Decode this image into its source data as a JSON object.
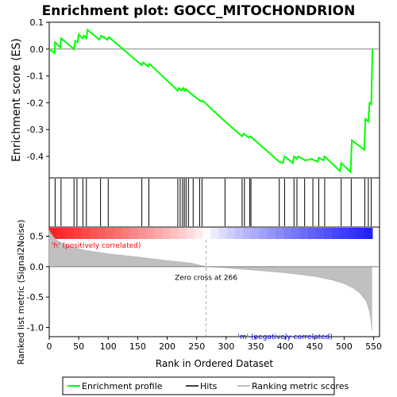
{
  "chart_data": {
    "type": "line",
    "title": "Enrichment plot: GOCC_MITOCHONDRION",
    "panels": {
      "enrichment": {
        "ylabel": "Enrichment score (ES)",
        "ylim": [
          -0.48,
          0.1
        ],
        "yticks": [
          0.1,
          0.0,
          -0.1,
          -0.2,
          -0.3,
          -0.4
        ],
        "series": [
          {
            "name": "Enrichment profile",
            "color": "#00ff00",
            "points": [
              [
                0,
                0.0
              ],
              [
                9,
                -0.015
              ],
              [
                10,
                0.025
              ],
              [
                19,
                0.005
              ],
              [
                20,
                0.04
              ],
              [
                42,
                0.0
              ],
              [
                44,
                0.03
              ],
              [
                48,
                0.025
              ],
              [
                50,
                0.055
              ],
              [
                57,
                0.04
              ],
              [
                59,
                0.05
              ],
              [
                63,
                0.04
              ],
              [
                65,
                0.072
              ],
              [
                85,
                0.035
              ],
              [
                88,
                0.05
              ],
              [
                99,
                0.035
              ],
              [
                101,
                0.045
              ],
              [
                157,
                -0.06
              ],
              [
                159,
                -0.05
              ],
              [
                168,
                -0.065
              ],
              [
                170,
                -0.055
              ],
              [
                218,
                -0.155
              ],
              [
                220,
                -0.145
              ],
              [
                224,
                -0.155
              ],
              [
                227,
                -0.145
              ],
              [
                229,
                -0.155
              ],
              [
                231,
                -0.148
              ],
              [
                236,
                -0.158
              ],
              [
                254,
                -0.19
              ],
              [
                258,
                -0.195
              ],
              [
                260,
                -0.192
              ],
              [
                298,
                -0.27
              ],
              [
                327,
                -0.325
              ],
              [
                330,
                -0.315
              ],
              [
                338,
                -0.33
              ],
              [
                341,
                -0.325
              ],
              [
                390,
                -0.42
              ],
              [
                396,
                -0.425
              ],
              [
                399,
                -0.4
              ],
              [
                413,
                -0.425
              ],
              [
                415,
                -0.4
              ],
              [
                420,
                -0.41
              ],
              [
                422,
                -0.4
              ],
              [
                434,
                -0.415
              ],
              [
                445,
                -0.41
              ],
              [
                455,
                -0.42
              ],
              [
                457,
                -0.405
              ],
              [
                465,
                -0.415
              ],
              [
                467,
                -0.4
              ],
              [
                493,
                -0.455
              ],
              [
                495,
                -0.425
              ],
              [
                511,
                -0.458
              ],
              [
                513,
                -0.34
              ],
              [
                534,
                -0.375
              ],
              [
                536,
                -0.26
              ],
              [
                541,
                -0.27
              ],
              [
                543,
                -0.2
              ],
              [
                546,
                -0.205
              ],
              [
                548,
                0.0
              ]
            ]
          }
        ]
      },
      "hits": {
        "positions": [
          10,
          20,
          42,
          47,
          57,
          63,
          87,
          100,
          157,
          169,
          218,
          222,
          226,
          229,
          232,
          236,
          244,
          255,
          259,
          298,
          327,
          331,
          340,
          342,
          390,
          399,
          415,
          420,
          433,
          447,
          457,
          467,
          495,
          512,
          535,
          541,
          546
        ]
      },
      "ranked_metric": {
        "ylabel": "Ranked list metric (Signal2Noise)",
        "ylim": [
          -1.15,
          0.65
        ],
        "yticks": [
          0.5,
          0.0,
          -0.5,
          -1.0
        ],
        "xlabel": "Rank in Ordered Dataset",
        "xlim": [
          0,
          560
        ],
        "xticks": [
          0,
          50,
          100,
          150,
          200,
          250,
          300,
          350,
          400,
          450,
          500,
          550
        ],
        "zero_cross": 266,
        "zero_cross_label": "Zero cross at 266",
        "pos_label": "'h' (positively correlated)",
        "neg_label": "'m' (negatively correlated)",
        "n": 548,
        "profile": [
          [
            0,
            0.6
          ],
          [
            3,
            0.55
          ],
          [
            8,
            0.48
          ],
          [
            15,
            0.42
          ],
          [
            25,
            0.37
          ],
          [
            40,
            0.32
          ],
          [
            60,
            0.27
          ],
          [
            100,
            0.21
          ],
          [
            150,
            0.16
          ],
          [
            200,
            0.1
          ],
          [
            240,
            0.06
          ],
          [
            266,
            0.0
          ],
          [
            300,
            -0.02
          ],
          [
            350,
            -0.06
          ],
          [
            400,
            -0.1
          ],
          [
            450,
            -0.16
          ],
          [
            480,
            -0.22
          ],
          [
            500,
            -0.28
          ],
          [
            515,
            -0.35
          ],
          [
            525,
            -0.42
          ],
          [
            532,
            -0.5
          ],
          [
            538,
            -0.58
          ],
          [
            542,
            -0.7
          ],
          [
            545,
            -0.85
          ],
          [
            547,
            -1.05
          ]
        ]
      }
    },
    "legend": {
      "items": [
        "Enrichment profile",
        "Hits",
        "Ranking metric scores"
      ],
      "colors": [
        "#00ff00",
        "#000000",
        "#c0c0c0"
      ]
    }
  }
}
